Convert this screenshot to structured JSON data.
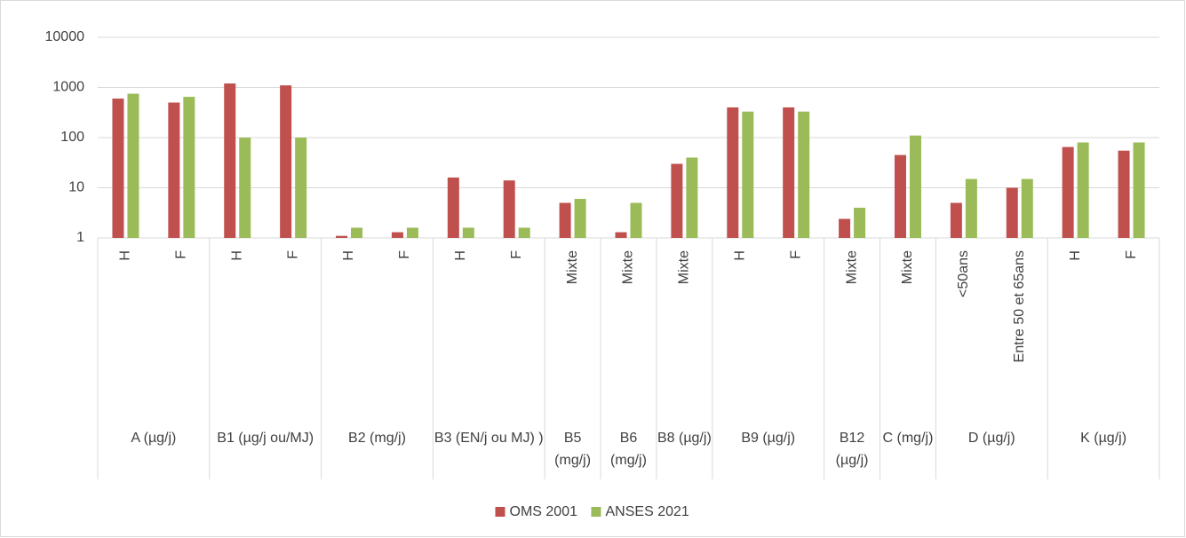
{
  "chart_data": {
    "type": "bar",
    "log_scale": true,
    "grid": true,
    "legend_position": "bottom",
    "ylim": [
      1,
      10000
    ],
    "yticks": [
      1,
      10,
      100,
      1000,
      10000
    ],
    "category_groups": [
      {
        "name": "A (µg/j)",
        "categories": [
          "H",
          "F"
        ]
      },
      {
        "name": "B1 (µg/j ou/MJ)",
        "categories": [
          "H",
          "F"
        ]
      },
      {
        "name": "B2 (mg/j)",
        "categories": [
          "H",
          "F"
        ]
      },
      {
        "name": "B3 (EN/j ou MJ) )",
        "categories": [
          "H",
          "F"
        ]
      },
      {
        "name": "B5 (mg/j)",
        "categories": [
          "Mixte"
        ]
      },
      {
        "name": "B6 (mg/j)",
        "categories": [
          "Mixte"
        ]
      },
      {
        "name": "B8 (µg/j)",
        "categories": [
          "Mixte"
        ]
      },
      {
        "name": "B9 (µg/j)",
        "categories": [
          "H",
          "F"
        ]
      },
      {
        "name": "B12 (µg/j)",
        "categories": [
          "Mixte"
        ]
      },
      {
        "name": "C (mg/j)",
        "categories": [
          "Mixte"
        ]
      },
      {
        "name": "D (µg/j)",
        "categories": [
          "<50ans",
          "Entre 50 et 65ans"
        ]
      },
      {
        "name": "K (µg/j)",
        "categories": [
          "H",
          "F"
        ]
      }
    ],
    "series": [
      {
        "name": "OMS 2001",
        "color": "#c0504d",
        "values": [
          600,
          500,
          1200,
          1100,
          1.1,
          1.3,
          16,
          14,
          5,
          1.3,
          30,
          400,
          400,
          2.4,
          45,
          5,
          10,
          65,
          55
        ]
      },
      {
        "name": "ANSES 2021",
        "color": "#9bbb59",
        "values": [
          750,
          650,
          100,
          100,
          1.6,
          1.6,
          1.6,
          1.6,
          6,
          5,
          40,
          330,
          330,
          4,
          110,
          15,
          15,
          80,
          80
        ]
      }
    ]
  }
}
